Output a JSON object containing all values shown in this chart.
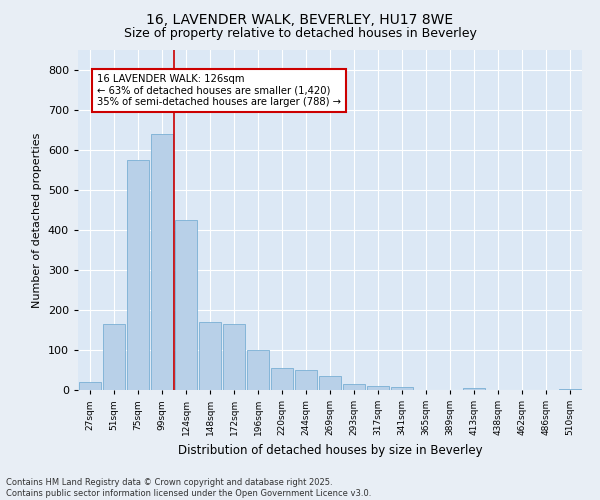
{
  "title1": "16, LAVENDER WALK, BEVERLEY, HU17 8WE",
  "title2": "Size of property relative to detached houses in Beverley",
  "xlabel": "Distribution of detached houses by size in Beverley",
  "ylabel": "Number of detached properties",
  "categories": [
    "27sqm",
    "51sqm",
    "75sqm",
    "99sqm",
    "124sqm",
    "148sqm",
    "172sqm",
    "196sqm",
    "220sqm",
    "244sqm",
    "269sqm",
    "293sqm",
    "317sqm",
    "341sqm",
    "365sqm",
    "389sqm",
    "413sqm",
    "438sqm",
    "462sqm",
    "486sqm",
    "510sqm"
  ],
  "values": [
    20,
    165,
    575,
    640,
    425,
    170,
    165,
    100,
    55,
    50,
    35,
    15,
    10,
    8,
    0,
    0,
    5,
    0,
    0,
    0,
    3
  ],
  "bar_color": "#b8d0e8",
  "bar_edge_color": "#7aafd4",
  "vline_x_index": 4,
  "vline_color": "#cc0000",
  "annotation_text": "16 LAVENDER WALK: 126sqm\n← 63% of detached houses are smaller (1,420)\n35% of semi-detached houses are larger (788) →",
  "annotation_box_color": "#ffffff",
  "annotation_box_edge_color": "#cc0000",
  "bg_color": "#e8eef5",
  "plot_bg_color": "#dce8f5",
  "grid_color": "#ffffff",
  "footer1": "Contains HM Land Registry data © Crown copyright and database right 2025.",
  "footer2": "Contains public sector information licensed under the Open Government Licence v3.0.",
  "ylim": [
    0,
    850
  ],
  "yticks": [
    0,
    100,
    200,
    300,
    400,
    500,
    600,
    700,
    800
  ]
}
